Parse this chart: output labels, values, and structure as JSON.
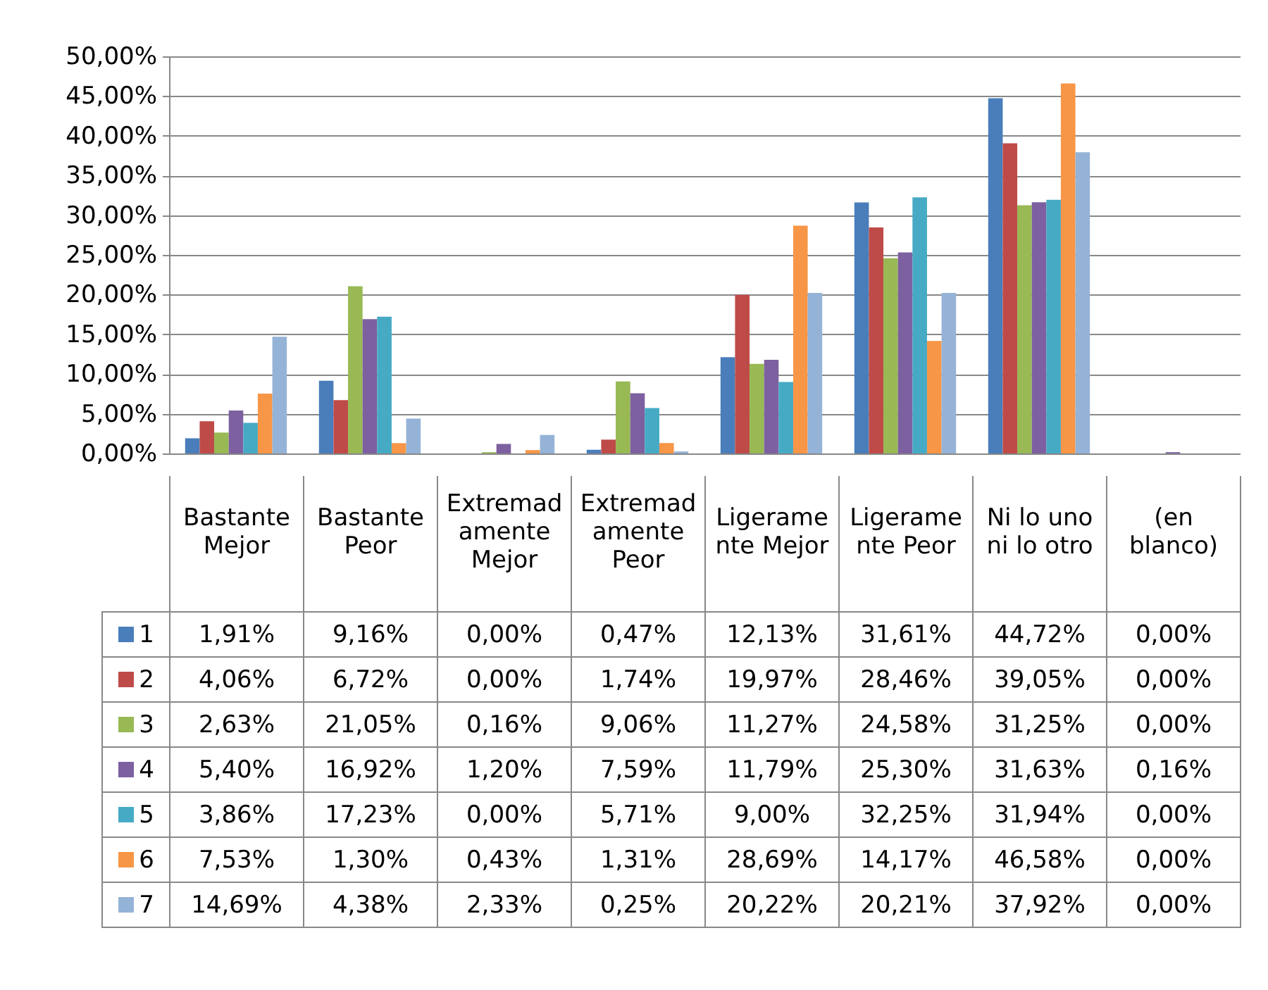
{
  "chart_data": {
    "type": "bar",
    "categories": [
      "Bastante Mejor",
      "Bastante Peor",
      "Extremadamente Mejor",
      "Extremadamente Peor",
      "Ligeramente Mejor",
      "Ligeramente Peor",
      "Ni lo uno ni lo otro",
      "(en blanco)"
    ],
    "series": [
      {
        "name": "1",
        "color": "#4a7ebb",
        "values": [
          1.91,
          9.16,
          0,
          0.47,
          12.13,
          31.61,
          44.72,
          0
        ],
        "value_labels": [
          "1,91%",
          "9,16%",
          "0,00%",
          "0,47%",
          "12,13%",
          "31,61%",
          "44,72%",
          "0,00%"
        ]
      },
      {
        "name": "2",
        "color": "#be4b48",
        "values": [
          4.06,
          6.72,
          0,
          1.74,
          19.97,
          28.46,
          39.05,
          0
        ],
        "value_labels": [
          "4,06%",
          "6,72%",
          "0,00%",
          "1,74%",
          "19,97%",
          "28,46%",
          "39,05%",
          "0,00%"
        ]
      },
      {
        "name": "3",
        "color": "#98b954",
        "values": [
          2.63,
          21.05,
          0.16,
          9.06,
          11.27,
          24.58,
          31.25,
          0
        ],
        "value_labels": [
          "2,63%",
          "21,05%",
          "0,16%",
          "9,06%",
          "11,27%",
          "24,58%",
          "31,25%",
          "0,00%"
        ]
      },
      {
        "name": "4",
        "color": "#7d60a0",
        "values": [
          5.4,
          16.92,
          1.2,
          7.59,
          11.79,
          25.3,
          31.63,
          0.16
        ],
        "value_labels": [
          "5,40%",
          "16,92%",
          "1,20%",
          "7,59%",
          "11,79%",
          "25,30%",
          "31,63%",
          "0,16%"
        ]
      },
      {
        "name": "5",
        "color": "#46aac5",
        "values": [
          3.86,
          17.23,
          0,
          5.71,
          9,
          32.25,
          31.94,
          0
        ],
        "value_labels": [
          "3,86%",
          "17,23%",
          "0,00%",
          "5,71%",
          "9,00%",
          "32,25%",
          "31,94%",
          "0,00%"
        ]
      },
      {
        "name": "6",
        "color": "#f79646",
        "values": [
          7.53,
          1.3,
          0.43,
          1.31,
          28.69,
          14.17,
          46.58,
          0
        ],
        "value_labels": [
          "7,53%",
          "1,30%",
          "0,43%",
          "1,31%",
          "28,69%",
          "14,17%",
          "46,58%",
          "0,00%"
        ]
      },
      {
        "name": "7",
        "color": "#95b3d7",
        "values": [
          14.69,
          4.38,
          2.33,
          0.25,
          20.22,
          20.21,
          37.92,
          0
        ],
        "value_labels": [
          "14,69%",
          "4,38%",
          "2,33%",
          "0,25%",
          "20,22%",
          "20,21%",
          "37,92%",
          "0,00%"
        ]
      }
    ],
    "ylim": [
      0,
      50
    ],
    "yticks": [
      {
        "value": 0,
        "label": "0,00%"
      },
      {
        "value": 5,
        "label": "5,00%"
      },
      {
        "value": 10,
        "label": "10,00%"
      },
      {
        "value": 15,
        "label": "15,00%"
      },
      {
        "value": 20,
        "label": "20,00%"
      },
      {
        "value": 25,
        "label": "25,00%"
      },
      {
        "value": 30,
        "label": "30,00%"
      },
      {
        "value": 35,
        "label": "35,00%"
      },
      {
        "value": 40,
        "label": "40,00%"
      },
      {
        "value": 45,
        "label": "45,00%"
      },
      {
        "value": 50,
        "label": "50,00%"
      }
    ],
    "grid": "y",
    "legend": "bottom"
  }
}
